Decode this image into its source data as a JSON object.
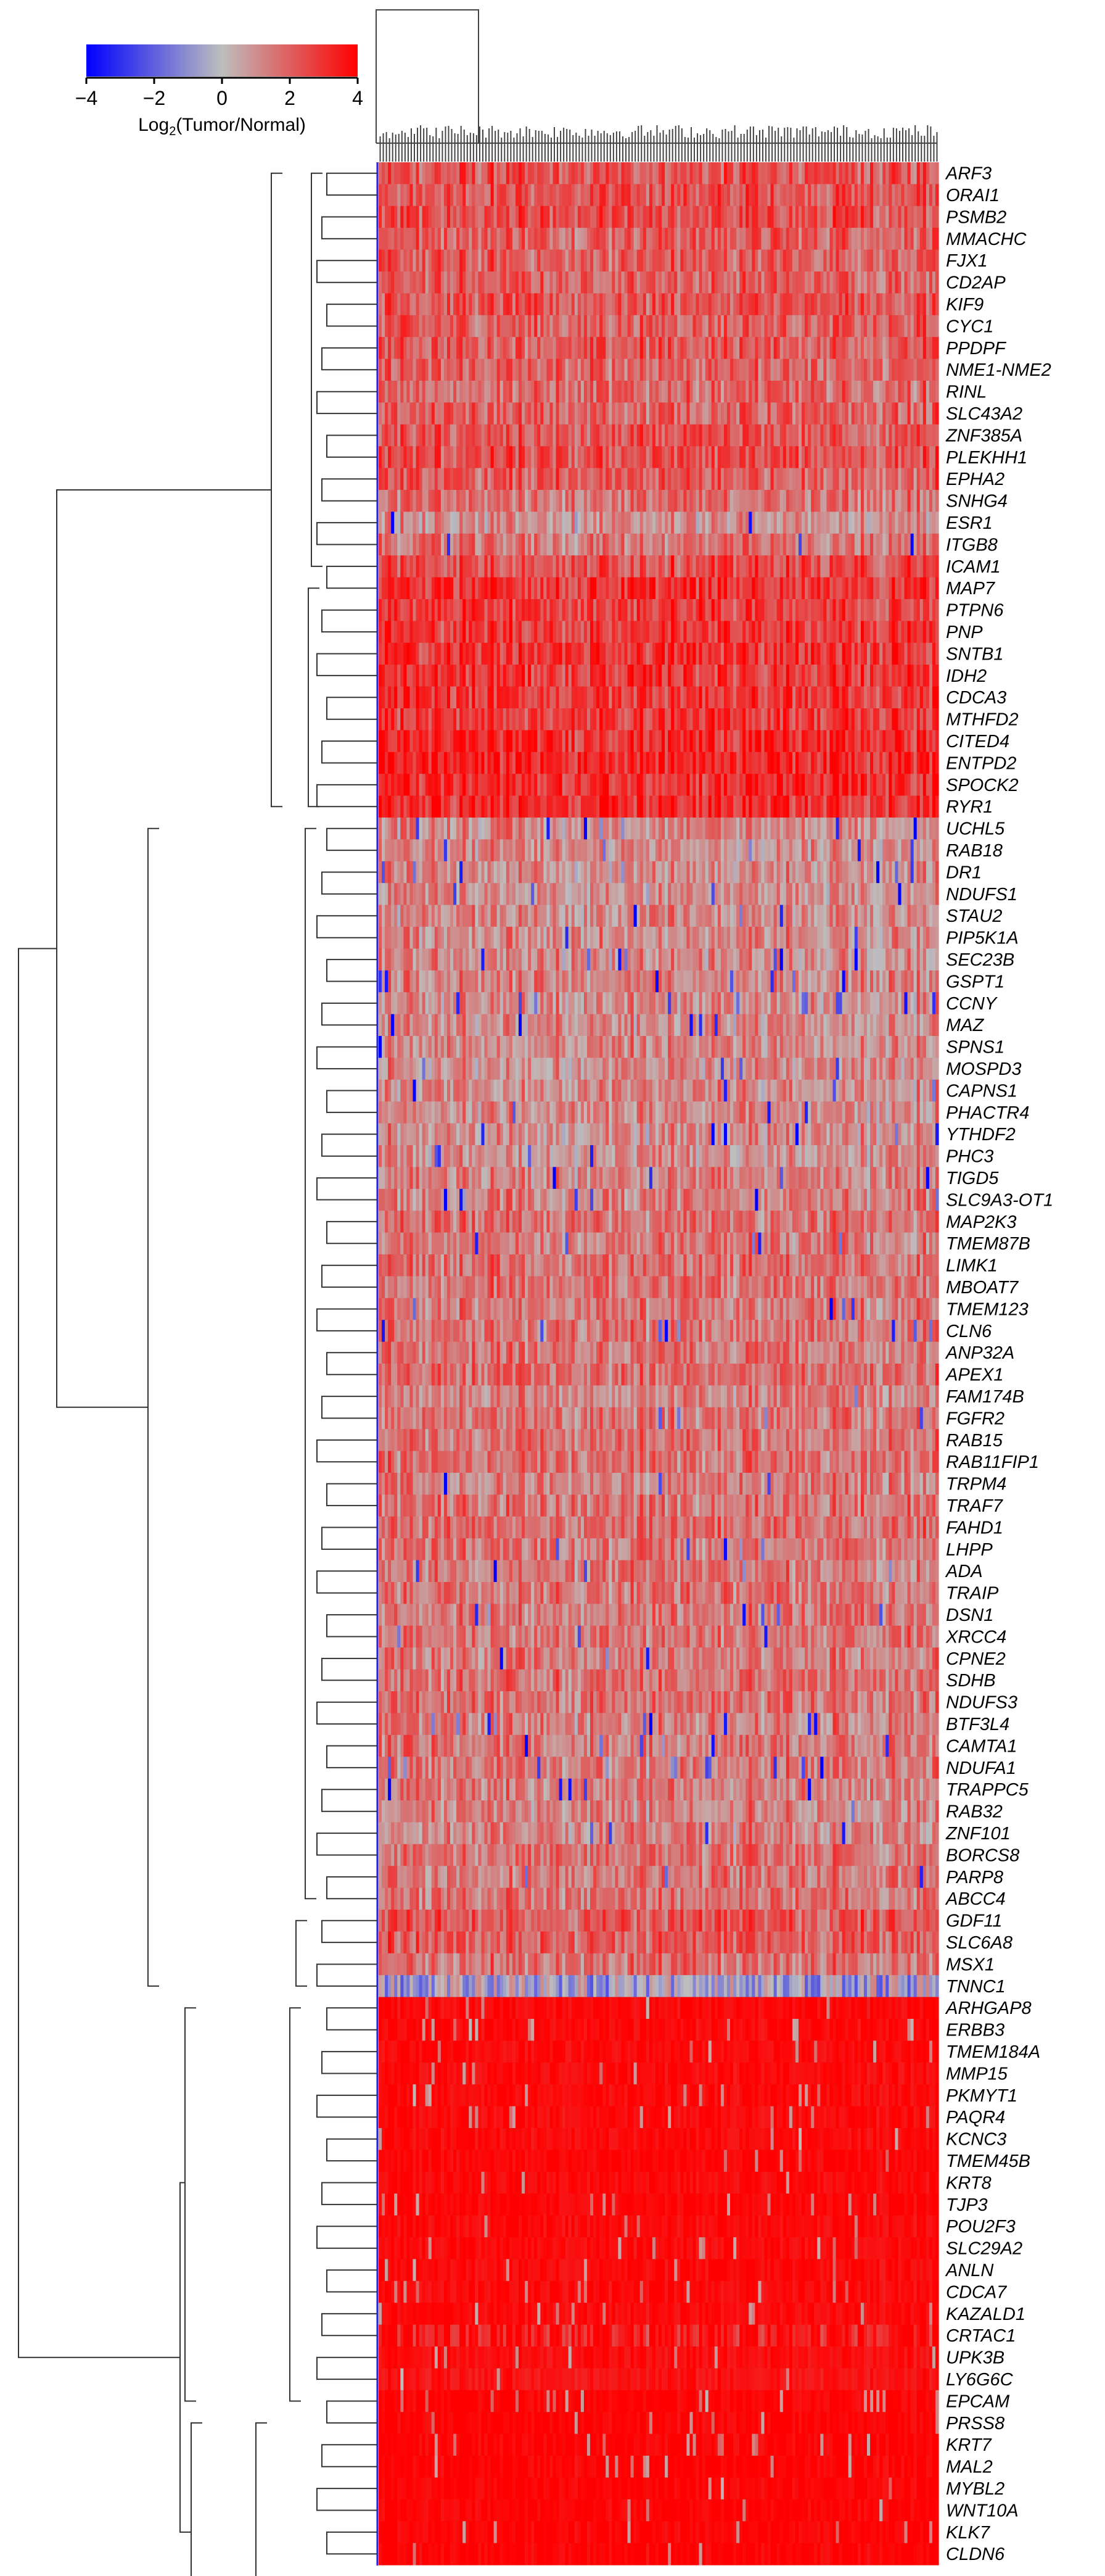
{
  "chart_data": {
    "type": "heatmap",
    "title": "",
    "colorbar": {
      "label_prefix": "Log",
      "label_sub": "2",
      "label_suffix": "(Tumor/Normal)",
      "ticks": [
        "−4",
        "−2",
        "0",
        "2",
        "4"
      ],
      "range": [
        -4,
        4
      ],
      "low_color": "#0000ff",
      "mid_color": "#bebebe",
      "high_color": "#ff0000"
    },
    "columns_count": 180,
    "row_dendrogram": "hierarchical clustering of genes (left)",
    "column_dendrogram": "hierarchical clustering of samples (top)",
    "genes": [
      "ARF3",
      "ORAI1",
      "PSMB2",
      "MMACHC",
      "FJX1",
      "CD2AP",
      "KIF9",
      "CYC1",
      "PPDPF",
      "NME1-NME2",
      "RINL",
      "SLC43A2",
      "ZNF385A",
      "PLEKHH1",
      "EPHA2",
      "SNHG4",
      "ESR1",
      "ITGB8",
      "ICAM1",
      "MAP7",
      "PTPN6",
      "PNP",
      "SNTB1",
      "IDH2",
      "CDCA3",
      "MTHFD2",
      "CITED4",
      "ENTPD2",
      "SPOCK2",
      "RYR1",
      "UCHL5",
      "RAB18",
      "DR1",
      "NDUFS1",
      "STAU2",
      "PIP5K1A",
      "SEC23B",
      "GSPT1",
      "CCNY",
      "MAZ",
      "SPNS1",
      "MOSPD3",
      "CAPNS1",
      "PHACTR4",
      "YTHDF2",
      "PHC3",
      "TIGD5",
      "SLC9A3-OT1",
      "MAP2K3",
      "TMEM87B",
      "LIMK1",
      "MBOAT7",
      "TMEM123",
      "CLN6",
      "ANP32A",
      "APEX1",
      "FAM174B",
      "FGFR2",
      "RAB15",
      "RAB11FIP1",
      "TRPM4",
      "TRAF7",
      "FAHD1",
      "LHPP",
      "ADA",
      "TRAIP",
      "DSN1",
      "XRCC4",
      "CPNE2",
      "SDHB",
      "NDUFS3",
      "BTF3L4",
      "CAMTA1",
      "NDUFA1",
      "TRAPPC5",
      "RAB32",
      "ZNF101",
      "BORCS8",
      "PARP8",
      "ABCC4",
      "GDF11",
      "SLC6A8",
      "MSX1",
      "TNNC1",
      "ARHGAP8",
      "ERBB3",
      "TMEM184A",
      "MMP15",
      "PKMYT1",
      "PAQR4",
      "KCNC3",
      "TMEM45B",
      "KRT8",
      "TJP3",
      "POU2F3",
      "SLC29A2",
      "ANLN",
      "CDCA7",
      "KAZALD1",
      "CRTAC1",
      "UPK3B",
      "LY6G6C",
      "EPCAM",
      "PRSS8",
      "KRT7",
      "MAL2",
      "MYBL2",
      "WNT10A",
      "KLK7",
      "CLDN6"
    ],
    "row_mean_log2fc": [
      2.2,
      2.3,
      2.3,
      2.1,
      2.0,
      2.0,
      2.2,
      2.0,
      2.1,
      1.9,
      1.8,
      1.9,
      2.1,
      2.3,
      2.0,
      1.6,
      0.9,
      1.5,
      2.4,
      2.9,
      2.7,
      2.8,
      2.9,
      2.8,
      2.8,
      2.8,
      3.1,
      3.3,
      3.0,
      3.0,
      1.2,
      1.1,
      1.1,
      1.0,
      1.1,
      1.2,
      1.1,
      1.3,
      1.1,
      1.1,
      1.2,
      1.1,
      1.2,
      1.1,
      1.1,
      1.0,
      1.3,
      1.3,
      1.6,
      1.4,
      1.6,
      1.6,
      1.5,
      1.5,
      1.6,
      1.7,
      1.3,
      1.5,
      1.6,
      1.6,
      1.4,
      1.6,
      1.7,
      1.5,
      1.5,
      1.6,
      1.5,
      1.5,
      1.4,
      1.6,
      1.6,
      1.4,
      1.5,
      1.5,
      1.4,
      1.3,
      1.3,
      1.6,
      1.5,
      1.6,
      2.2,
      2.1,
      1.6,
      0.1,
      3.8,
      3.8,
      3.8,
      3.8,
      3.8,
      3.8,
      3.8,
      3.9,
      3.8,
      3.9,
      3.8,
      3.8,
      3.8,
      3.8,
      3.8,
      3.5,
      3.7,
      3.6,
      3.95,
      3.95,
      3.95,
      3.95,
      3.95,
      3.95,
      3.95,
      3.95
    ]
  }
}
